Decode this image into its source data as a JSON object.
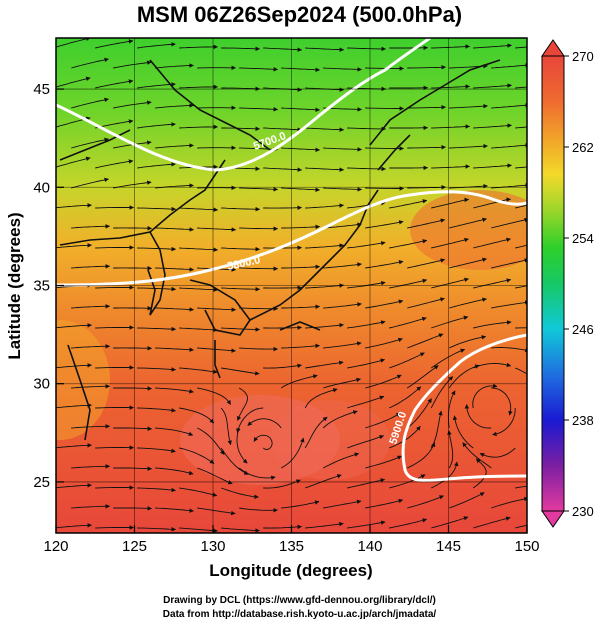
{
  "title": "MSM 06Z26Sep2024 (500.0hPa)",
  "axes": {
    "xlabel": "Longitude (degrees)",
    "ylabel": "Latitude  (degrees)",
    "x_ticks": [
      "120",
      "125",
      "130",
      "135",
      "140",
      "145",
      "150"
    ],
    "y_ticks": [
      "25",
      "30",
      "35",
      "40",
      "45"
    ],
    "x_range": [
      120,
      150
    ],
    "y_range": [
      22.4,
      47.6
    ]
  },
  "colorbar": {
    "ticks": [
      "270",
      "262",
      "254",
      "246",
      "238",
      "230"
    ],
    "range": [
      230,
      270
    ],
    "colors": [
      "#e33aa0",
      "#7b1fa2",
      "#1a1ad2",
      "#1f6fe0",
      "#10c8d8",
      "#16c865",
      "#2fcf2a",
      "#9bd62a",
      "#f3d92a",
      "#f1a22a",
      "#ef6b30",
      "#e8463a"
    ]
  },
  "contours": [
    "5700.0",
    "5800.0",
    "5900.0"
  ],
  "credits": {
    "line1": "Drawing by DCL (https://www.gfd-dennou.org/library/dcl/)",
    "line2": "Data from http://database.rish.kyoto-u.ac.jp/arch/jmadata/"
  }
}
